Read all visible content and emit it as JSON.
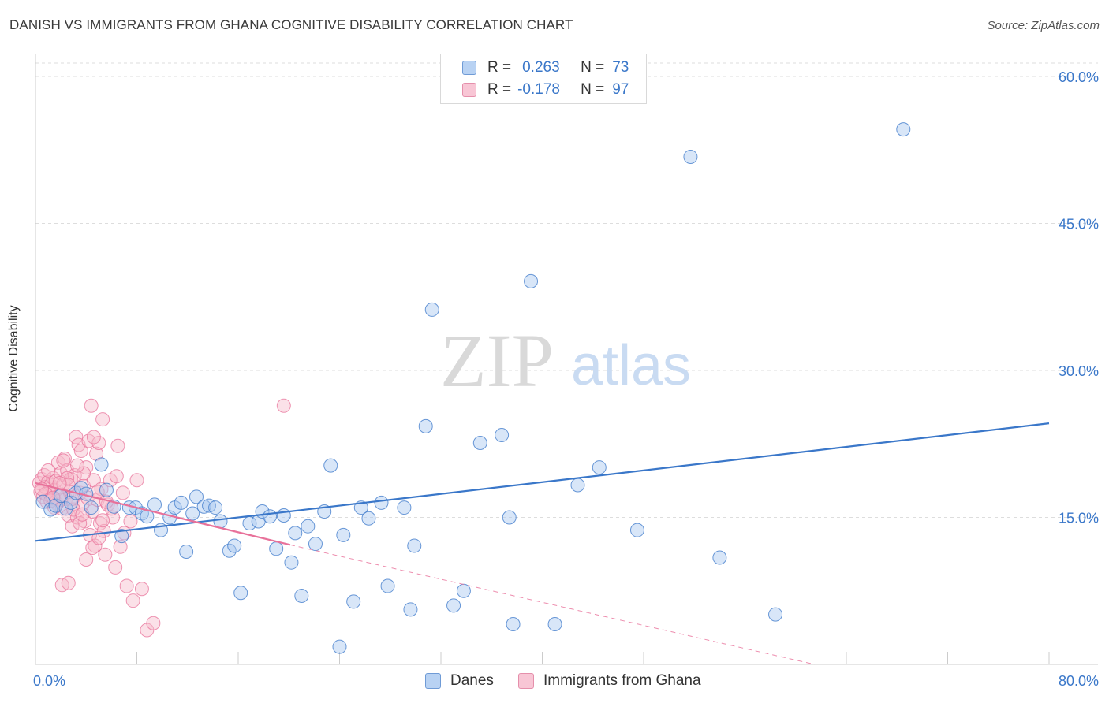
{
  "header": {
    "title": "DANISH VS IMMIGRANTS FROM GHANA COGNITIVE DISABILITY CORRELATION CHART",
    "source": "Source: ZipAtlas.com"
  },
  "watermark": {
    "zip": "ZIP",
    "atlas": "atlas"
  },
  "legend": {
    "r_label": "R =",
    "n_label": "N =",
    "series": [
      {
        "r": "0.263",
        "n": "73"
      },
      {
        "r": "-0.178",
        "n": "97"
      }
    ]
  },
  "colors": {
    "blue": "#3a77c9",
    "blue_fill": "#a9c8f0",
    "pink": "#e8719a",
    "pink_fill": "#f7bccd",
    "grid": "#dddddd"
  },
  "chart_data": {
    "type": "scatter",
    "title": "DANISH VS IMMIGRANTS FROM GHANA COGNITIVE DISABILITY CORRELATION CHART",
    "xlabel": "",
    "ylabel": "Cognitive Disability",
    "xlim": [
      0,
      80
    ],
    "ylim": [
      0,
      60
    ],
    "x_tick_labels": [
      {
        "value": 0,
        "label": "0.0%"
      },
      {
        "value": 80,
        "label": "80.0%"
      }
    ],
    "y_tick_labels": [
      {
        "value": 15,
        "label": "15.0%"
      },
      {
        "value": 30,
        "label": "30.0%"
      },
      {
        "value": 45,
        "label": "45.0%"
      },
      {
        "value": 60,
        "label": "60.0%"
      }
    ],
    "x_minor_ticks": [
      0,
      8,
      16,
      24,
      32,
      40,
      48,
      56,
      64,
      72,
      80
    ],
    "grid": true,
    "legend_position": "top-center",
    "series": [
      {
        "name": "Danes",
        "color": "#3a77c9",
        "r": 0.263,
        "n": 73,
        "trend": {
          "x": [
            0,
            80
          ],
          "y": [
            12.6,
            24.6
          ],
          "dashed_extension": false
        },
        "points": [
          [
            0.6,
            16.6
          ],
          [
            1.2,
            15.8
          ],
          [
            1.6,
            16.2
          ],
          [
            2.0,
            17.2
          ],
          [
            2.4,
            15.9
          ],
          [
            2.8,
            16.5
          ],
          [
            3.2,
            17.5
          ],
          [
            3.6,
            18.0
          ],
          [
            4.0,
            17.4
          ],
          [
            4.4,
            16.0
          ],
          [
            5.2,
            20.4
          ],
          [
            5.6,
            17.8
          ],
          [
            6.2,
            16.1
          ],
          [
            6.8,
            13.1
          ],
          [
            7.4,
            16.0
          ],
          [
            7.9,
            16.0
          ],
          [
            8.4,
            15.4
          ],
          [
            8.8,
            15.1
          ],
          [
            9.4,
            16.3
          ],
          [
            9.9,
            13.7
          ],
          [
            10.6,
            15.0
          ],
          [
            11.0,
            16.0
          ],
          [
            11.5,
            16.5
          ],
          [
            11.9,
            11.5
          ],
          [
            12.4,
            15.4
          ],
          [
            12.7,
            17.1
          ],
          [
            13.3,
            16.1
          ],
          [
            13.7,
            16.2
          ],
          [
            14.2,
            16.0
          ],
          [
            14.6,
            14.6
          ],
          [
            15.3,
            11.6
          ],
          [
            15.7,
            12.1
          ],
          [
            16.2,
            7.3
          ],
          [
            16.9,
            14.4
          ],
          [
            17.6,
            14.6
          ],
          [
            17.9,
            15.6
          ],
          [
            18.5,
            15.1
          ],
          [
            19.0,
            11.8
          ],
          [
            19.6,
            15.2
          ],
          [
            20.2,
            10.4
          ],
          [
            20.5,
            13.4
          ],
          [
            21.0,
            7.0
          ],
          [
            21.5,
            14.1
          ],
          [
            22.1,
            12.3
          ],
          [
            22.8,
            15.6
          ],
          [
            23.3,
            20.3
          ],
          [
            24.0,
            1.8
          ],
          [
            24.3,
            13.2
          ],
          [
            25.1,
            6.4
          ],
          [
            25.7,
            16.0
          ],
          [
            26.3,
            14.9
          ],
          [
            27.3,
            16.5
          ],
          [
            27.8,
            8.0
          ],
          [
            29.1,
            16.0
          ],
          [
            29.6,
            5.6
          ],
          [
            29.9,
            12.1
          ],
          [
            30.8,
            24.3
          ],
          [
            31.3,
            36.2
          ],
          [
            33.0,
            6.0
          ],
          [
            33.8,
            7.5
          ],
          [
            35.1,
            22.6
          ],
          [
            36.8,
            23.4
          ],
          [
            37.4,
            15.0
          ],
          [
            37.7,
            4.1
          ],
          [
            39.1,
            39.1
          ],
          [
            41.0,
            4.1
          ],
          [
            42.8,
            18.3
          ],
          [
            44.5,
            20.1
          ],
          [
            47.5,
            13.7
          ],
          [
            51.7,
            51.8
          ],
          [
            54.0,
            10.9
          ],
          [
            58.4,
            5.1
          ],
          [
            68.5,
            54.6
          ]
        ]
      },
      {
        "name": "Immigrants from Ghana",
        "color": "#e8719a",
        "r": -0.178,
        "n": 97,
        "trend": {
          "x": [
            0,
            20.1
          ],
          "y": [
            18.5,
            12.2
          ],
          "dashed_to": [
            61.5,
            0
          ]
        },
        "points": [
          [
            0.3,
            18.5
          ],
          [
            0.4,
            17.6
          ],
          [
            0.5,
            18.9
          ],
          [
            0.6,
            17.1
          ],
          [
            0.7,
            19.3
          ],
          [
            0.8,
            18.1
          ],
          [
            0.9,
            16.6
          ],
          [
            1.0,
            18.6
          ],
          [
            1.1,
            17.5
          ],
          [
            1.2,
            18.3
          ],
          [
            1.3,
            16.9
          ],
          [
            1.4,
            19.0
          ],
          [
            1.5,
            17.8
          ],
          [
            1.6,
            18.7
          ],
          [
            1.7,
            16.4
          ],
          [
            1.8,
            20.6
          ],
          [
            1.9,
            17.2
          ],
          [
            2.0,
            19.5
          ],
          [
            2.1,
            15.9
          ],
          [
            2.2,
            18.4
          ],
          [
            2.3,
            21.0
          ],
          [
            2.4,
            16.9
          ],
          [
            2.5,
            19.8
          ],
          [
            2.6,
            15.2
          ],
          [
            2.7,
            17.6
          ],
          [
            2.8,
            18.9
          ],
          [
            2.9,
            14.1
          ],
          [
            3.0,
            16.4
          ],
          [
            3.1,
            19.3
          ],
          [
            3.2,
            23.2
          ],
          [
            3.3,
            15.0
          ],
          [
            3.4,
            22.4
          ],
          [
            3.5,
            17.5
          ],
          [
            3.6,
            21.8
          ],
          [
            3.7,
            16.3
          ],
          [
            3.8,
            18.2
          ],
          [
            3.9,
            14.6
          ],
          [
            4.0,
            20.1
          ],
          [
            4.1,
            17.0
          ],
          [
            4.2,
            22.8
          ],
          [
            4.3,
            13.2
          ],
          [
            4.4,
            26.4
          ],
          [
            4.5,
            15.6
          ],
          [
            4.6,
            18.8
          ],
          [
            4.7,
            12.1
          ],
          [
            4.8,
            21.5
          ],
          [
            4.9,
            16.8
          ],
          [
            5.0,
            22.6
          ],
          [
            5.1,
            14.4
          ],
          [
            5.2,
            17.9
          ],
          [
            5.3,
            25.0
          ],
          [
            5.4,
            13.6
          ],
          [
            5.5,
            11.2
          ],
          [
            5.7,
            16.3
          ],
          [
            5.9,
            18.8
          ],
          [
            6.1,
            15.0
          ],
          [
            6.3,
            9.9
          ],
          [
            6.5,
            22.3
          ],
          [
            6.7,
            12.0
          ],
          [
            6.9,
            17.5
          ],
          [
            7.2,
            8.0
          ],
          [
            7.5,
            14.6
          ],
          [
            7.7,
            6.5
          ],
          [
            8.0,
            18.8
          ],
          [
            8.4,
            7.7
          ],
          [
            8.8,
            3.5
          ],
          [
            9.3,
            4.2
          ],
          [
            19.6,
            26.4
          ],
          [
            2.0,
            16.8
          ],
          [
            2.5,
            19.0
          ],
          [
            3.0,
            15.8
          ],
          [
            3.5,
            14.4
          ],
          [
            4.0,
            10.7
          ],
          [
            4.5,
            11.9
          ],
          [
            5.0,
            12.9
          ],
          [
            1.5,
            16.0
          ],
          [
            0.8,
            17.4
          ],
          [
            1.2,
            16.7
          ],
          [
            2.6,
            18.3
          ],
          [
            3.8,
            19.5
          ],
          [
            4.6,
            23.2
          ],
          [
            5.3,
            14.7
          ],
          [
            6.0,
            15.9
          ],
          [
            3.3,
            20.3
          ],
          [
            2.2,
            20.8
          ],
          [
            1.0,
            19.8
          ],
          [
            0.5,
            17.9
          ],
          [
            1.9,
            18.5
          ],
          [
            2.9,
            16.9
          ],
          [
            3.7,
            15.3
          ],
          [
            4.9,
            17.6
          ],
          [
            5.6,
            16.6
          ],
          [
            6.4,
            19.2
          ],
          [
            2.1,
            8.1
          ],
          [
            2.6,
            8.3
          ],
          [
            7.0,
            13.4
          ],
          [
            1.4,
            17.0
          ]
        ]
      }
    ]
  },
  "bottom_legend": {
    "items": [
      {
        "label": "Danes"
      },
      {
        "label": "Immigrants from Ghana"
      }
    ]
  }
}
